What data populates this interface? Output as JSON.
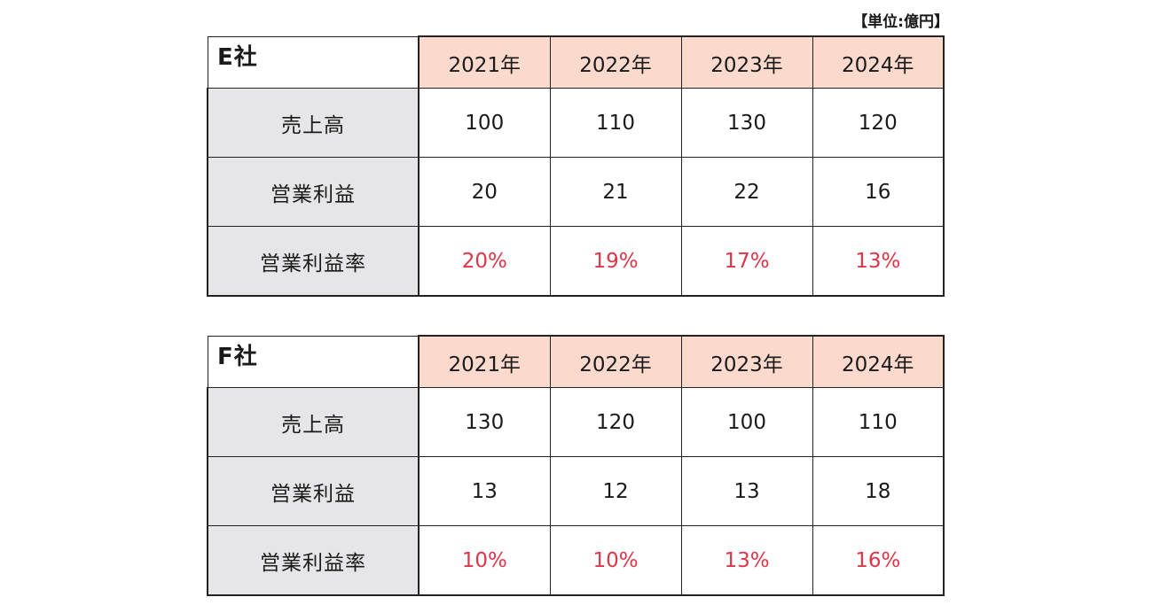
{
  "unit_note": "【単位:億円】",
  "companies": [
    {
      "name": "E社",
      "years": [
        "2021年",
        "2022年",
        "2023年",
        "2024年"
      ],
      "rows": [
        {
          "label": "売上高",
          "values": [
            "100",
            "110",
            "130",
            "120"
          ]
        },
        {
          "label": "営業利益",
          "values": [
            "20",
            "21",
            "22",
            "16"
          ]
        },
        {
          "label": "営業利益率",
          "values": [
            "20%",
            "19%",
            "17%",
            "13%"
          ]
        }
      ]
    },
    {
      "name": "F社",
      "years": [
        "2021年",
        "2022年",
        "2023年",
        "2024年"
      ],
      "rows": [
        {
          "label": "売上高",
          "values": [
            "130",
            "120",
            "100",
            "110"
          ]
        },
        {
          "label": "営業利益",
          "values": [
            "13",
            "12",
            "13",
            "18"
          ]
        },
        {
          "label": "営業利益率",
          "values": [
            "10%",
            "10%",
            "13%",
            "16%"
          ]
        }
      ]
    }
  ],
  "colors": {
    "header_bg": "#fbd9cd",
    "label_bg": "#e6e6e8",
    "percent_text": "#e03447"
  }
}
